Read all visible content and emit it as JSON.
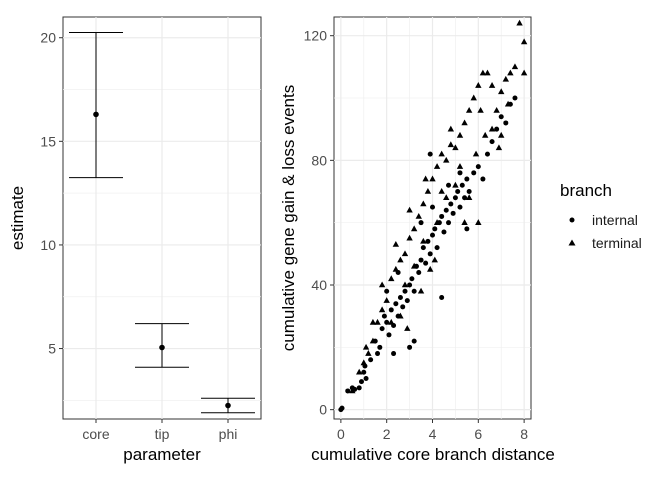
{
  "chart_data": [
    {
      "type": "errorbar",
      "xlabel": "parameter",
      "ylabel": "estimate",
      "categories": [
        "core",
        "tip",
        "phi"
      ],
      "estimates": [
        16.3,
        5.05,
        2.25
      ],
      "lower": [
        13.25,
        4.1,
        1.9
      ],
      "upper": [
        20.25,
        6.2,
        2.6
      ],
      "ylim": [
        1.6,
        21.0
      ],
      "yticks": [
        5,
        10,
        15,
        20
      ],
      "grid": true
    },
    {
      "type": "scatter",
      "xlabel": "cumulative core branch distance",
      "ylabel": "cumulative gene gain & loss events",
      "xlim": [
        -0.3,
        8.3
      ],
      "ylim": [
        -3,
        126
      ],
      "xticks": [
        0,
        2,
        4,
        6,
        8
      ],
      "yticks": [
        0,
        40,
        80,
        120
      ],
      "grid": true,
      "legend": {
        "title": "branch",
        "placement": "right",
        "entries": [
          {
            "label": "internal",
            "shape": "circle"
          },
          {
            "label": "terminal",
            "shape": "triangle"
          }
        ]
      },
      "series": [
        {
          "name": "internal",
          "shape": "circle",
          "points": [
            [
              0,
              0
            ],
            [
              0.05,
              0.5
            ],
            [
              0.3,
              6
            ],
            [
              0.5,
              7
            ],
            [
              0.6,
              6.5
            ],
            [
              0.8,
              7
            ],
            [
              0.9,
              9
            ],
            [
              1.0,
              12
            ],
            [
              1.05,
              14
            ],
            [
              1.1,
              10
            ],
            [
              1.3,
              16
            ],
            [
              1.5,
              22
            ],
            [
              1.6,
              18
            ],
            [
              1.7,
              20
            ],
            [
              1.8,
              26
            ],
            [
              1.9,
              30
            ],
            [
              2.0,
              28
            ],
            [
              2.1,
              24
            ],
            [
              2.2,
              32
            ],
            [
              2.3,
              27
            ],
            [
              2.4,
              34
            ],
            [
              2.5,
              30
            ],
            [
              2.6,
              36
            ],
            [
              2.7,
              33
            ],
            [
              2.8,
              38
            ],
            [
              2.9,
              35
            ],
            [
              3.0,
              40
            ],
            [
              3.1,
              42
            ],
            [
              3.2,
              38
            ],
            [
              3.3,
              46
            ],
            [
              3.4,
              44
            ],
            [
              3.5,
              48
            ],
            [
              3.6,
              52
            ],
            [
              3.7,
              47
            ],
            [
              3.8,
              54
            ],
            [
              3.9,
              50
            ],
            [
              4.0,
              56
            ],
            [
              4.1,
              58
            ],
            [
              4.2,
              52
            ],
            [
              4.3,
              60
            ],
            [
              4.4,
              62
            ],
            [
              4.5,
              57
            ],
            [
              4.6,
              64
            ],
            [
              4.7,
              60
            ],
            [
              4.8,
              66
            ],
            [
              4.9,
              63
            ],
            [
              5.0,
              68
            ],
            [
              5.1,
              70
            ],
            [
              5.2,
              65
            ],
            [
              5.3,
              72
            ],
            [
              5.4,
              68
            ],
            [
              5.5,
              74
            ],
            [
              5.6,
              70
            ],
            [
              5.8,
              76
            ],
            [
              6.0,
              78
            ],
            [
              6.2,
              74
            ],
            [
              6.4,
              82
            ],
            [
              6.6,
              86
            ],
            [
              6.8,
              90
            ],
            [
              7.0,
              94
            ],
            [
              7.2,
              92
            ],
            [
              7.4,
              98
            ],
            [
              7.6,
              100
            ],
            [
              3.9,
              82
            ],
            [
              3.0,
              20
            ],
            [
              3.2,
              22
            ],
            [
              2.3,
              18
            ],
            [
              4.4,
              36
            ],
            [
              4.0,
              65
            ],
            [
              3.5,
              60
            ],
            [
              4.7,
              72
            ],
            [
              5.2,
              76
            ],
            [
              2.0,
              38
            ],
            [
              2.5,
              44
            ],
            [
              5.5,
              58
            ]
          ]
        },
        {
          "name": "terminal",
          "shape": "triangle",
          "points": [
            [
              0.5,
              6
            ],
            [
              0.8,
              12
            ],
            [
              1.0,
              15
            ],
            [
              1.2,
              18
            ],
            [
              1.4,
              22
            ],
            [
              1.6,
              28
            ],
            [
              1.8,
              32
            ],
            [
              2.0,
              35
            ],
            [
              2.2,
              42
            ],
            [
              2.4,
              45
            ],
            [
              2.6,
              48
            ],
            [
              2.8,
              50
            ],
            [
              3.0,
              55
            ],
            [
              3.2,
              58
            ],
            [
              3.4,
              62
            ],
            [
              3.6,
              66
            ],
            [
              3.8,
              70
            ],
            [
              4.0,
              74
            ],
            [
              4.2,
              78
            ],
            [
              4.4,
              82
            ],
            [
              4.6,
              80
            ],
            [
              4.8,
              85
            ],
            [
              5.0,
              84
            ],
            [
              5.2,
              88
            ],
            [
              5.4,
              92
            ],
            [
              5.6,
              96
            ],
            [
              5.8,
              100
            ],
            [
              6.0,
              104
            ],
            [
              6.2,
              108
            ],
            [
              6.4,
              108
            ],
            [
              6.6,
              104
            ],
            [
              6.8,
              96
            ],
            [
              7.0,
              102
            ],
            [
              7.2,
              106
            ],
            [
              7.4,
              108
            ],
            [
              7.6,
              110
            ],
            [
              7.8,
              124
            ],
            [
              8.0,
              118
            ],
            [
              8.0,
              108
            ],
            [
              1.4,
              28
            ],
            [
              2.2,
              28
            ],
            [
              2.8,
              40
            ],
            [
              3.2,
              46
            ],
            [
              3.6,
              54
            ],
            [
              3.9,
              45
            ],
            [
              4.2,
              60
            ],
            [
              4.6,
              68
            ],
            [
              5.0,
              72
            ],
            [
              5.4,
              60
            ],
            [
              5.9,
              82
            ],
            [
              6.3,
              88
            ],
            [
              7.0,
              88
            ],
            [
              6.0,
              60
            ],
            [
              2.6,
              30
            ],
            [
              1.8,
              40
            ],
            [
              4.4,
              70
            ],
            [
              5.2,
              78
            ],
            [
              6.6,
              90
            ],
            [
              3.0,
              64
            ],
            [
              2.4,
              53
            ],
            [
              4.8,
              90
            ],
            [
              3.5,
              38
            ],
            [
              4.1,
              48
            ],
            [
              5.6,
              68
            ],
            [
              6.9,
              84
            ],
            [
              7.3,
              98
            ],
            [
              1.1,
              20
            ],
            [
              2.9,
              26
            ],
            [
              3.7,
              74
            ],
            [
              6.1,
              96
            ]
          ]
        }
      ]
    }
  ]
}
